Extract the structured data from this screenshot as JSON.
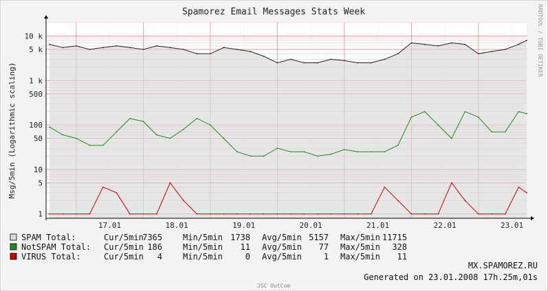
{
  "chart_data": {
    "type": "line",
    "title": "Spamorez Email Messages Stats Week",
    "ylabel": "Msg/5min (Logarithmic scaling)",
    "xlabel": "",
    "yscale": "log",
    "ylim": [
      0.8,
      20000
    ],
    "x_ticks": [
      "17.01",
      "18.01",
      "19.01",
      "20.01",
      "21.01",
      "22.01",
      "23.01"
    ],
    "y_ticks": [
      {
        "value": 1,
        "label": "1"
      },
      {
        "value": 5,
        "label": "5"
      },
      {
        "value": 10,
        "label": "10"
      },
      {
        "value": 50,
        "label": "50"
      },
      {
        "value": 100,
        "label": "100"
      },
      {
        "value": 500,
        "label": "500"
      },
      {
        "value": 1000,
        "label": "1 k"
      },
      {
        "value": 5000,
        "label": "5 k"
      },
      {
        "value": 10000,
        "label": "10 k"
      }
    ],
    "grid": true,
    "x": [
      16.6,
      16.8,
      17.0,
      17.2,
      17.4,
      17.6,
      17.8,
      18.0,
      18.2,
      18.4,
      18.6,
      18.8,
      19.0,
      19.2,
      19.4,
      19.6,
      19.8,
      20.0,
      20.2,
      20.4,
      20.6,
      20.8,
      21.0,
      21.2,
      21.4,
      21.6,
      21.8,
      22.0,
      22.2,
      22.4,
      22.6,
      22.8,
      23.0,
      23.2,
      23.4,
      23.6,
      23.72
    ],
    "series": [
      {
        "name": "SPAM Total",
        "color": "#aaaaaa",
        "line_color": "#222222",
        "fill": true,
        "values": [
          6500,
          5500,
          6000,
          5000,
          5500,
          6000,
          5500,
          5000,
          6000,
          5500,
          5000,
          4000,
          4000,
          5500,
          5000,
          4500,
          3500,
          2500,
          3000,
          2500,
          2500,
          3000,
          2800,
          2500,
          2500,
          3000,
          4000,
          7000,
          6500,
          6000,
          7000,
          6500,
          4000,
          4500,
          5000,
          6500,
          8000
        ]
      },
      {
        "name": "NotSPAM Total",
        "color": "#228822",
        "values": [
          90,
          60,
          50,
          35,
          35,
          70,
          140,
          120,
          60,
          50,
          80,
          140,
          100,
          50,
          25,
          20,
          20,
          30,
          25,
          25,
          20,
          22,
          28,
          25,
          25,
          25,
          35,
          150,
          200,
          100,
          50,
          200,
          150,
          70,
          70,
          200,
          180
        ]
      },
      {
        "name": "VIRUS Total",
        "color": "#cc0000",
        "values": [
          1,
          1,
          1,
          1,
          4,
          3,
          1,
          1,
          1,
          5,
          2,
          1,
          1,
          1,
          1,
          1,
          1,
          1,
          1,
          1,
          1,
          1,
          1,
          1,
          1,
          4,
          2,
          1,
          1,
          1,
          5,
          2,
          1,
          1,
          1,
          4,
          3
        ]
      }
    ],
    "legend": {
      "placement": "bottom",
      "items": [
        {
          "label": "SPAM Total:",
          "cur_label": "Cur/5min",
          "cur": "7365",
          "min_label": "Min/5min",
          "min": "1738",
          "avg_label": "Avg/5min",
          "avg": "5157",
          "max_label": "Max/5min",
          "max": "11715",
          "color": "#dddddd"
        },
        {
          "label": "NotSPAM Total:",
          "cur_label": "Cur/5min",
          "cur": "186",
          "min_label": "Min/5min",
          "min": "11",
          "avg_label": "Avg/5min",
          "avg": "77",
          "max_label": "Max/5min",
          "max": "328",
          "color": "#228822"
        },
        {
          "label": "VIRUS Total:",
          "cur_label": "Cur/5min",
          "cur": "4",
          "min_label": "Min/5min",
          "min": "0",
          "avg_label": "Avg/5min",
          "avg": "1",
          "max_label": "Max/5min",
          "max": "11",
          "color": "#cc0000"
        }
      ]
    },
    "host": "MX.SPAMOREZ.RU",
    "generated": "Generated on 23.01.2008 17h.25m,01s",
    "side_label": "RRDTOOL / TOBI OETIKER",
    "footer": "JSC OutCom"
  }
}
